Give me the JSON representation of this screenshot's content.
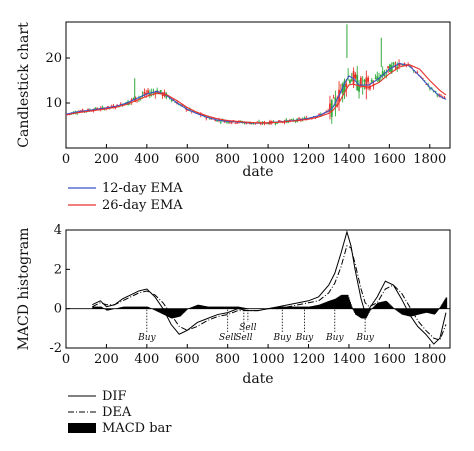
{
  "chart_data": [
    {
      "type": "line",
      "subtype": "candlestick",
      "xlabel": "date",
      "ylabel": "Candlestick chart",
      "xlim": [
        0,
        1900
      ],
      "ylim": [
        0,
        28
      ],
      "xticks": [
        0,
        200,
        400,
        600,
        800,
        1000,
        1200,
        1400,
        1600,
        1800
      ],
      "yticks": [
        10,
        20
      ],
      "grid": false,
      "legend": {
        "placement": "bottom-left-outside",
        "entries": [
          "12-day EMA",
          "26-day EMA"
        ]
      },
      "colors": {
        "ema12": "#3a55c8",
        "ema26": "#e8322a",
        "candle_up": "#e8322a",
        "candle_down": "#2eaa3a"
      },
      "x": [
        0,
        50,
        100,
        150,
        200,
        250,
        300,
        350,
        400,
        450,
        500,
        550,
        600,
        650,
        700,
        750,
        800,
        850,
        900,
        950,
        1000,
        1050,
        1100,
        1150,
        1200,
        1250,
        1300,
        1320,
        1350,
        1380,
        1400,
        1420,
        1450,
        1500,
        1550,
        1600,
        1650,
        1700,
        1750,
        1800,
        1850,
        1880
      ],
      "series": [
        {
          "name": "12-day EMA",
          "values": [
            7.5,
            8.0,
            8.3,
            8.6,
            8.9,
            9.3,
            10.0,
            11.0,
            12.0,
            12.6,
            11.6,
            10.0,
            8.6,
            7.6,
            6.8,
            6.2,
            5.9,
            5.8,
            5.6,
            5.5,
            5.6,
            5.8,
            6.0,
            6.2,
            6.6,
            7.2,
            8.2,
            9.0,
            11.5,
            14.5,
            16.0,
            15.5,
            14.0,
            14.0,
            15.5,
            17.5,
            18.8,
            18.2,
            16.0,
            13.5,
            11.5,
            10.8
          ]
        },
        {
          "name": "26-day EMA",
          "values": [
            7.3,
            7.8,
            8.1,
            8.4,
            8.7,
            9.1,
            9.7,
            10.6,
            11.5,
            12.2,
            11.8,
            10.5,
            9.0,
            7.9,
            7.1,
            6.5,
            6.1,
            5.9,
            5.7,
            5.6,
            5.6,
            5.7,
            5.9,
            6.1,
            6.4,
            6.9,
            7.7,
            8.3,
            10.0,
            12.5,
            14.0,
            14.2,
            13.8,
            13.5,
            14.6,
            16.5,
            18.0,
            18.5,
            17.5,
            15.0,
            12.8,
            11.8
          ]
        }
      ]
    },
    {
      "type": "line",
      "subtype": "macd",
      "xlabel": "date",
      "ylabel": "MACD histogram",
      "xlim": [
        0,
        1900
      ],
      "ylim": [
        -2,
        4
      ],
      "xticks": [
        0,
        200,
        400,
        600,
        800,
        1000,
        1200,
        1400,
        1600,
        1800
      ],
      "yticks": [
        -2,
        0,
        2,
        4
      ],
      "grid": false,
      "legend": {
        "placement": "bottom-left-outside",
        "entries": [
          "DIF",
          "DEA",
          "MACD bar"
        ]
      },
      "x": [
        130,
        170,
        200,
        240,
        280,
        320,
        360,
        400,
        440,
        480,
        520,
        560,
        600,
        650,
        700,
        750,
        800,
        850,
        900,
        950,
        1000,
        1050,
        1100,
        1150,
        1200,
        1250,
        1300,
        1330,
        1360,
        1390,
        1410,
        1430,
        1460,
        1480,
        1500,
        1540,
        1580,
        1620,
        1660,
        1700,
        1740,
        1780,
        1820,
        1850,
        1880
      ],
      "series": [
        {
          "name": "DIF",
          "values": [
            0.2,
            0.4,
            0.1,
            0.2,
            0.5,
            0.7,
            0.9,
            1.0,
            0.6,
            0.0,
            -0.8,
            -1.3,
            -1.1,
            -0.7,
            -0.5,
            -0.3,
            -0.2,
            0.0,
            -0.1,
            -0.1,
            0.0,
            0.1,
            0.2,
            0.3,
            0.4,
            0.6,
            1.2,
            1.8,
            2.8,
            3.9,
            3.2,
            2.0,
            0.5,
            -0.2,
            0.0,
            0.6,
            1.4,
            1.2,
            0.5,
            -0.3,
            -0.9,
            -1.3,
            -1.8,
            -1.5,
            -0.2
          ]
        },
        {
          "name": "DEA",
          "values": [
            0.1,
            0.3,
            0.2,
            0.2,
            0.4,
            0.6,
            0.8,
            0.9,
            0.7,
            0.3,
            -0.3,
            -0.9,
            -1.1,
            -0.9,
            -0.6,
            -0.4,
            -0.3,
            -0.1,
            -0.1,
            -0.1,
            0.0,
            0.0,
            0.1,
            0.2,
            0.3,
            0.4,
            0.8,
            1.3,
            2.1,
            3.2,
            3.1,
            2.3,
            1.0,
            0.3,
            0.1,
            0.3,
            1.0,
            1.2,
            0.8,
            0.1,
            -0.6,
            -1.1,
            -1.5,
            -1.6,
            -0.8
          ]
        },
        {
          "name": "MACD bar",
          "values": [
            0.1,
            0.1,
            -0.1,
            0.0,
            0.1,
            0.1,
            0.1,
            0.1,
            -0.1,
            -0.3,
            -0.5,
            -0.4,
            0.0,
            0.2,
            0.1,
            0.1,
            0.1,
            0.1,
            0.0,
            0.0,
            0.0,
            0.1,
            0.1,
            0.1,
            0.1,
            0.2,
            0.4,
            0.5,
            0.7,
            0.7,
            0.1,
            -0.3,
            -0.5,
            -0.5,
            -0.1,
            0.3,
            0.4,
            0.0,
            -0.3,
            -0.4,
            -0.3,
            -0.2,
            -0.3,
            0.1,
            0.6
          ]
        }
      ],
      "annotations": [
        {
          "text": "Buy",
          "x": 400
        },
        {
          "text": "Sell",
          "x": 800
        },
        {
          "text": "Sell",
          "x": 880
        },
        {
          "text": "Sell",
          "x": 900
        },
        {
          "text": "Buy",
          "x": 1070
        },
        {
          "text": "Buy",
          "x": 1180
        },
        {
          "text": "Buy",
          "x": 1330
        },
        {
          "text": "Buy",
          "x": 1480
        }
      ]
    }
  ]
}
